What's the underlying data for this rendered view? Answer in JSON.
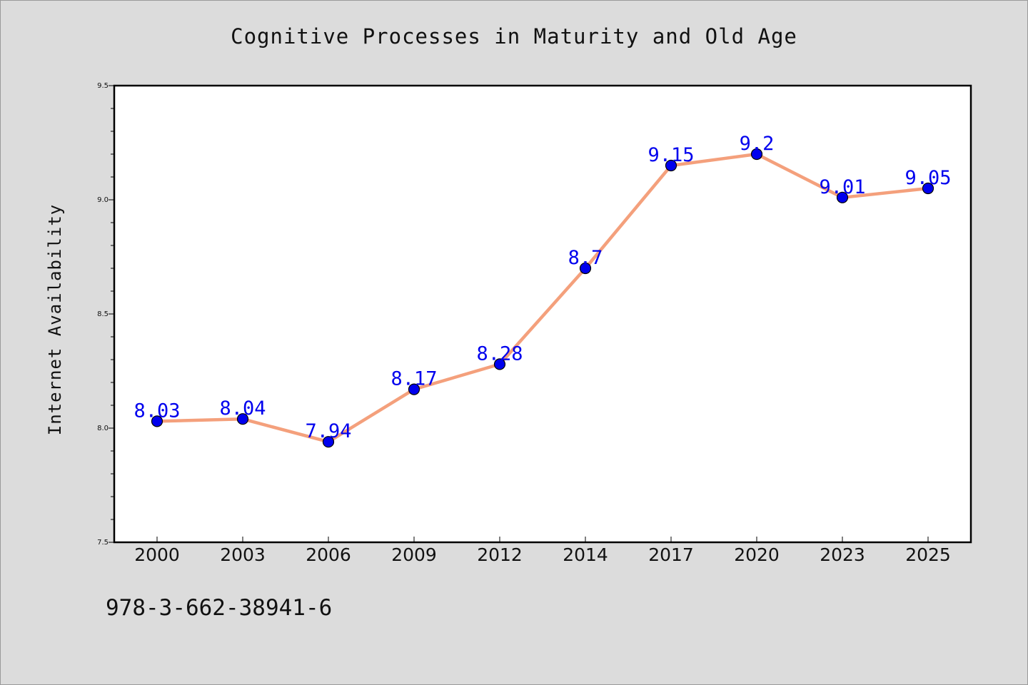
{
  "title": "Cognitive Processes in Maturity and Old Age",
  "footer_text": "978-3-662-38941-6",
  "colors": {
    "background": "#dcdcdc",
    "plot_background": "#ffffff",
    "line": "#f4a07c",
    "marker": "#0000ee",
    "data_label": "#0000ee"
  },
  "chart_data": {
    "type": "line",
    "title": "Cognitive Processes in Maturity and Old Age",
    "xlabel": "",
    "ylabel": "Internet Availability",
    "categories": [
      "2000",
      "2003",
      "2006",
      "2009",
      "2012",
      "2014",
      "2017",
      "2020",
      "2023",
      "2025"
    ],
    "series": [
      {
        "values": [
          8.03,
          8.04,
          7.94,
          8.17,
          8.28,
          8.7,
          9.15,
          9.2,
          9.01,
          9.05
        ],
        "labels": [
          "8.03",
          "8.04",
          "7.94",
          "8.17",
          "8.28",
          "8.7",
          "9.15",
          "9.2",
          "9.01",
          "9.05"
        ]
      }
    ],
    "ylim": [
      7.5,
      9.5
    ],
    "yticks": [
      "7.5",
      "8.0",
      "8.5",
      "9.0",
      "9.5"
    ],
    "grid": false,
    "legend": "none"
  }
}
